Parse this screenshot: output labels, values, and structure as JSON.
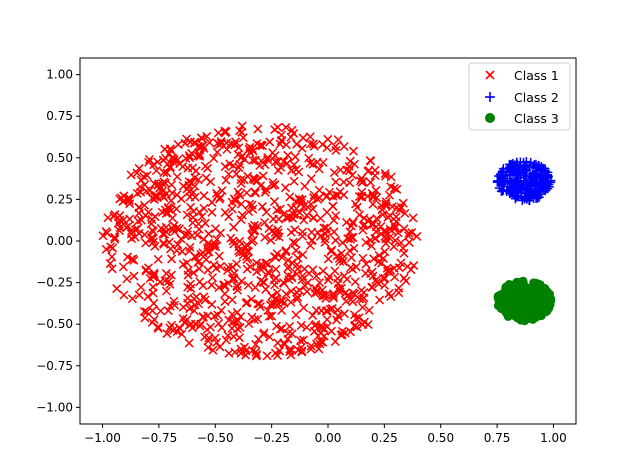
{
  "chart_data": {
    "type": "scatter",
    "title": "",
    "xlabel": "",
    "ylabel": "",
    "xlim": [
      -1.1,
      1.1
    ],
    "ylim": [
      -1.1,
      1.1
    ],
    "grid": false,
    "legend_position": "upper right",
    "x_ticks": [
      "−1.00",
      "−0.75",
      "−0.50",
      "−0.25",
      "0.00",
      "0.25",
      "0.50",
      "0.75",
      "1.00"
    ],
    "y_ticks": [
      "1.00",
      "0.75",
      "0.50",
      "0.25",
      "0.00",
      "−0.25",
      "−0.50",
      "−0.75",
      "−1.00"
    ],
    "x_tick_values": [
      -1.0,
      -0.75,
      -0.5,
      -0.25,
      0.0,
      0.25,
      0.5,
      0.75,
      1.0
    ],
    "y_tick_values": [
      1.0,
      0.75,
      0.5,
      0.25,
      0.0,
      -0.25,
      -0.5,
      -0.75,
      -1.0
    ],
    "series": [
      {
        "name": "Class 1",
        "marker": "x",
        "color": "#ff0000",
        "cluster": {
          "shape": "disc",
          "center": [
            -0.3,
            0.0
          ],
          "radius": 0.7,
          "count": 1000
        }
      },
      {
        "name": "Class 2",
        "marker": "+",
        "color": "#0000ff",
        "cluster": {
          "shape": "disc",
          "center": [
            0.87,
            0.36
          ],
          "radius": 0.12,
          "count": 250
        }
      },
      {
        "name": "Class 3",
        "marker": "o",
        "color": "#008000",
        "cluster": {
          "shape": "disc",
          "center": [
            0.87,
            -0.36
          ],
          "radius": 0.12,
          "count": 250
        }
      }
    ]
  }
}
